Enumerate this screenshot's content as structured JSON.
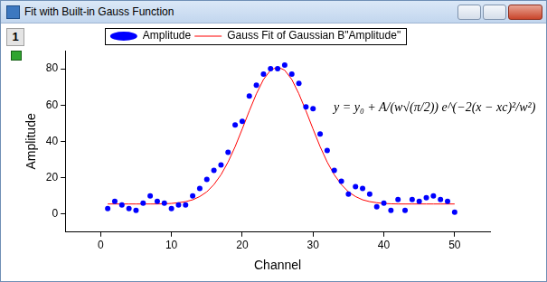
{
  "window": {
    "title": "Fit with Built-in Gauss Function",
    "layer": "1"
  },
  "chart_data": {
    "type": "scatter",
    "x_label": "Channel",
    "y_label": "Amplitude",
    "annotations": [
      "y = y₀ + A/(w√(π/2)) e^(−2(x − xc)²/w²)"
    ],
    "xlim": [
      -5,
      55
    ],
    "xticks": [
      0,
      10,
      20,
      30,
      40,
      50
    ],
    "ylim": [
      -10,
      90
    ],
    "yticks": [
      0,
      20,
      40,
      60,
      80
    ],
    "grid": false,
    "legend": "top",
    "series": [
      {
        "name": "Amplitude",
        "type": "scatter",
        "color": "#0000ff",
        "marker": "circle",
        "x": [
          1,
          2,
          3,
          4,
          5,
          6,
          7,
          8,
          9,
          10,
          11,
          12,
          13,
          14,
          15,
          16,
          17,
          18,
          19,
          20,
          21,
          22,
          23,
          24,
          25,
          26,
          27,
          28,
          29,
          30,
          31,
          32,
          33,
          34,
          35,
          36,
          37,
          38,
          39,
          40,
          41,
          42,
          43,
          44,
          45,
          46,
          47,
          48,
          49,
          50
        ],
        "values": [
          3,
          7,
          5,
          3,
          2,
          6,
          10,
          7,
          6,
          3,
          5,
          5,
          10,
          14,
          19,
          24,
          27,
          34,
          49,
          51,
          65,
          71,
          77,
          80,
          80,
          82,
          77,
          72,
          59,
          58,
          44,
          35,
          24,
          18,
          11,
          15,
          14,
          11,
          4,
          6,
          2,
          8,
          2,
          8,
          7,
          9,
          10,
          8,
          7,
          1
        ]
      },
      {
        "name": "Gauss Fit of Gaussian B\"Amplitude\"",
        "type": "line",
        "color": "#ff0000",
        "line_style": "solid",
        "x": [
          1,
          2,
          3,
          4,
          5,
          6,
          7,
          8,
          9,
          10,
          11,
          12,
          13,
          14,
          15,
          16,
          17,
          18,
          19,
          20,
          21,
          22,
          23,
          24,
          25,
          26,
          27,
          28,
          29,
          30,
          31,
          32,
          33,
          34,
          35,
          36,
          37,
          38,
          39,
          40,
          41,
          42,
          43,
          44,
          45,
          46,
          47,
          48,
          49,
          50
        ],
        "values": [
          5.5,
          5.5,
          5.5,
          5.5,
          5.5,
          5.5,
          5.5,
          5.5,
          5.6,
          5.8,
          6.2,
          6.8,
          7.8,
          9.6,
          12.2,
          16.2,
          21.6,
          28.6,
          37.1,
          46.8,
          56.8,
          66.2,
          74.1,
          79.2,
          81.0,
          79.2,
          74.1,
          66.2,
          56.8,
          46.8,
          37.1,
          28.6,
          21.6,
          16.2,
          12.2,
          9.6,
          7.8,
          6.8,
          6.2,
          5.8,
          5.6,
          5.5,
          5.5,
          5.5,
          5.5,
          5.5,
          5.5,
          5.5,
          5.5,
          5.5
        ]
      }
    ]
  }
}
